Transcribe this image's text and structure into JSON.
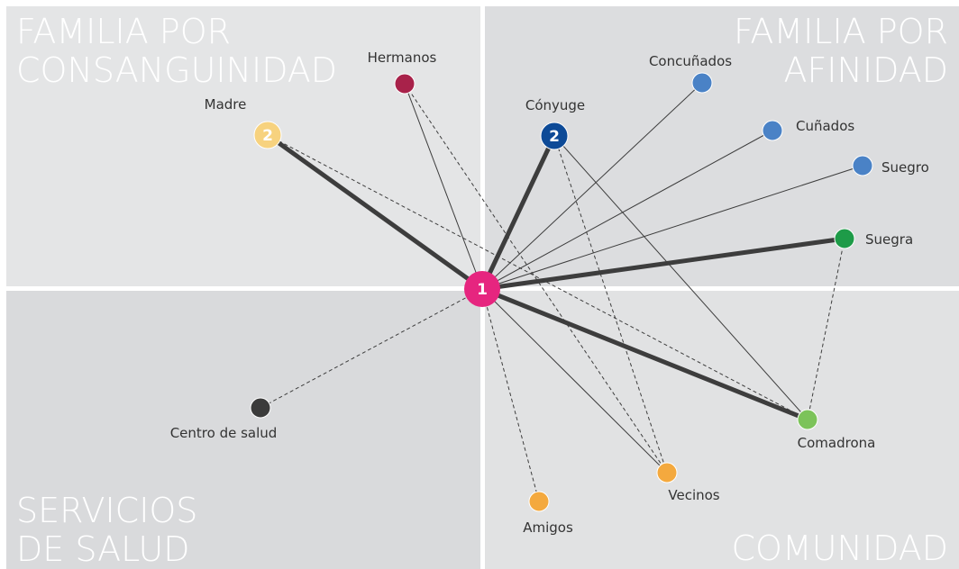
{
  "quadrants": [
    {
      "lines": [
        "FAMILIA POR",
        "CONSANGUINIDAD"
      ]
    },
    {
      "lines": [
        "FAMILIA POR",
        "AFINIDAD"
      ]
    },
    {
      "lines": [
        "SERVICIOS",
        "DE SALUD"
      ]
    },
    {
      "lines": [
        "COMUNIDAD"
      ]
    }
  ],
  "nodes": [
    {
      "badge": "1"
    },
    {
      "label": "Madre",
      "badge": "2"
    },
    {
      "label": "Hermanos"
    },
    {
      "label": "Cónyuge",
      "badge": "2"
    },
    {
      "label": "Concuñados"
    },
    {
      "label": "Cuñados"
    },
    {
      "label": "Suegro"
    },
    {
      "label": "Suegra"
    },
    {
      "label": "Comadrona"
    },
    {
      "label": "Vecinos"
    },
    {
      "label": "Amigos"
    },
    {
      "label": "Centro de salud"
    }
  ]
}
